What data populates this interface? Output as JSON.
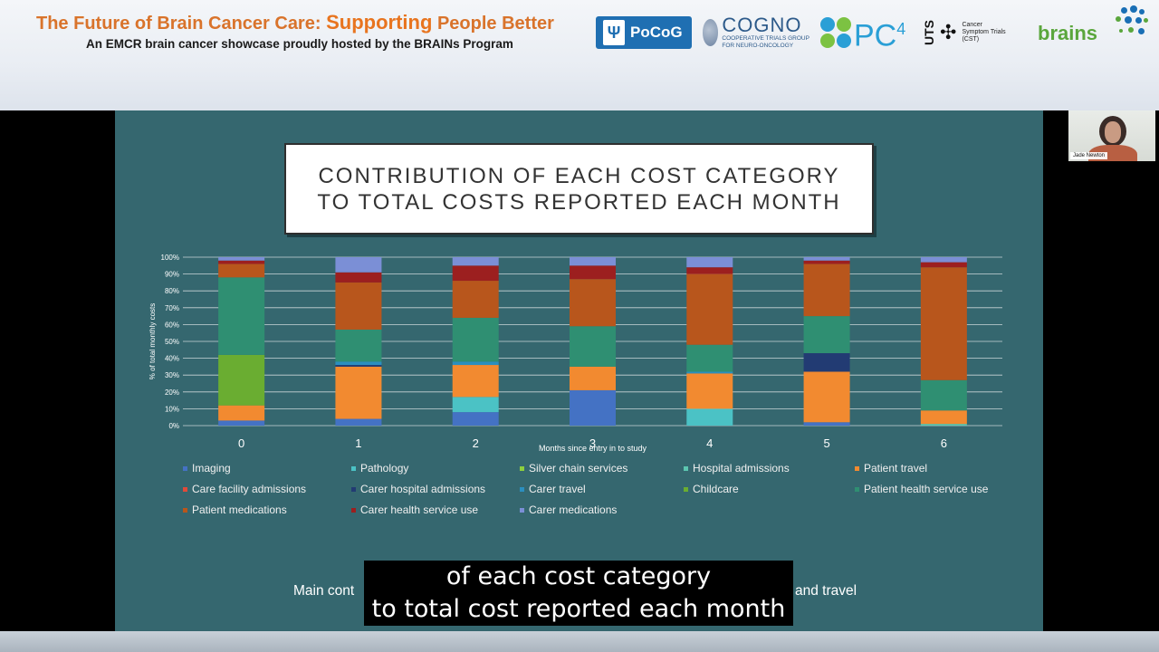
{
  "header": {
    "title_part1": "The Future of Brain Cancer Care:",
    "title_part2": "Supporting",
    "title_part3": "People Better",
    "subtitle": "An EMCR brain cancer showcase proudly hosted by the BRAINs Program",
    "logos": {
      "pocog": "PoCoG",
      "cogno_main": "COGNO",
      "cogno_sub": "COOPERATIVE TRIALS GROUP FOR NEURO-ONCOLOGY",
      "pc4": "PC",
      "pc4_sup": "4",
      "uts": "UTS",
      "cst": "Cancer Symptom Trials (CST)",
      "brains": "brains"
    }
  },
  "slide": {
    "title_line1": "CONTRIBUTION OF EACH COST CATEGORY",
    "title_line2": "TO TOTAL COSTS REPORTED EACH MONTH",
    "main_text_left": "Main cont",
    "main_text_right": "and travel"
  },
  "caption": {
    "line1": "of each cost category",
    "line2": "to total cost reported each month"
  },
  "webcam": {
    "name": "Jade Newton"
  },
  "colors": {
    "slide_bg": "#35676f",
    "title_orange": "#d9732b"
  },
  "chart_data": {
    "type": "bar",
    "stacked": true,
    "xlabel": "Months since entry in to study",
    "ylabel": "% of total monthly costs",
    "ylim": [
      0,
      100
    ],
    "yticks": [
      "0%",
      "10%",
      "20%",
      "30%",
      "40%",
      "50%",
      "60%",
      "70%",
      "80%",
      "90%",
      "100%"
    ],
    "categories": [
      "0",
      "1",
      "2",
      "3",
      "4",
      "5",
      "6"
    ],
    "series": [
      {
        "name": "Imaging",
        "color": "#4472c4",
        "values": [
          3,
          4,
          8,
          21,
          0,
          2,
          0
        ]
      },
      {
        "name": "Pathology",
        "color": "#4bc2c5",
        "values": [
          0,
          0,
          9,
          0,
          10,
          0,
          0
        ]
      },
      {
        "name": "Silver chain services",
        "color": "#8ccf3e",
        "values": [
          0,
          0,
          0,
          0,
          0,
          0,
          0
        ]
      },
      {
        "name": "Hospital admissions",
        "color": "#5cc6b0",
        "values": [
          0,
          0,
          0,
          0,
          0,
          0,
          1
        ]
      },
      {
        "name": "Patient travel",
        "color": "#f28a30",
        "values": [
          9,
          31,
          19,
          14,
          21,
          30,
          8
        ]
      },
      {
        "name": "Care facility admissions",
        "color": "#e04b3a",
        "values": [
          0,
          0,
          0,
          0,
          0,
          0,
          0
        ]
      },
      {
        "name": "Carer hospital admissions",
        "color": "#223b73",
        "values": [
          0,
          1,
          0,
          0,
          0,
          11,
          0
        ]
      },
      {
        "name": "Carer travel",
        "color": "#2b8fbf",
        "values": [
          0,
          2,
          2,
          0,
          1,
          0,
          0
        ]
      },
      {
        "name": "Childcare",
        "color": "#6aad31",
        "values": [
          30,
          0,
          0,
          0,
          0,
          0,
          0
        ]
      },
      {
        "name": "Patient health service use",
        "color": "#2f8f72",
        "values": [
          46,
          19,
          26,
          24,
          16,
          22,
          18
        ]
      },
      {
        "name": "Patient medications",
        "color": "#b8561c",
        "values": [
          8,
          28,
          22,
          28,
          42,
          31,
          67
        ]
      },
      {
        "name": "Carer health service use",
        "color": "#9c1f1f",
        "values": [
          2,
          6,
          9,
          8,
          4,
          2,
          3
        ]
      },
      {
        "name": "Carer medications",
        "color": "#7b8fd6",
        "values": [
          2,
          9,
          5,
          5,
          6,
          2,
          3
        ]
      }
    ],
    "legend_position": "bottom"
  }
}
